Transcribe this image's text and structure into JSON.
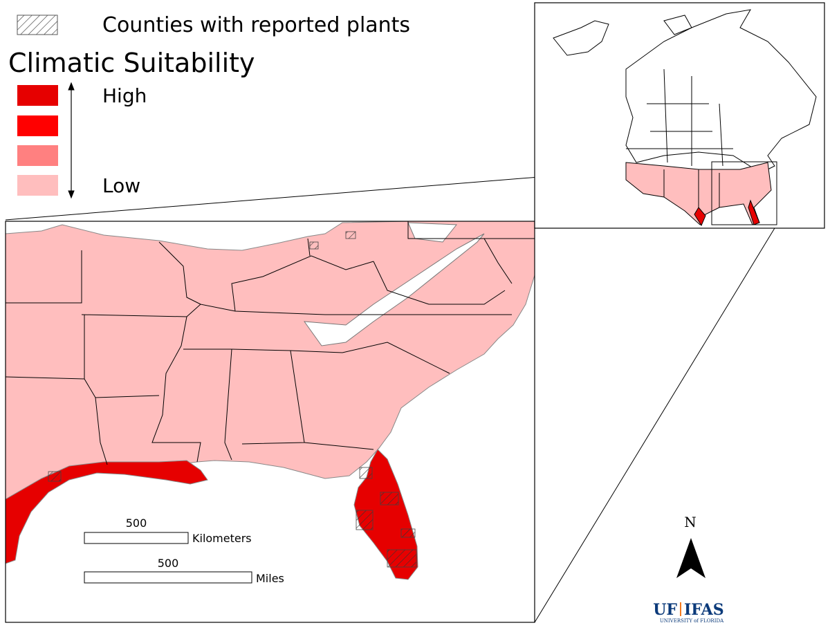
{
  "legend": {
    "hatch_label": "Counties with reported plants",
    "title": "Climatic Suitability",
    "high": "High",
    "low": "Low"
  },
  "scale_bar": {
    "km_value": 500,
    "km_unit": "Kilometers",
    "mi_value": 500,
    "mi_unit": "Miles"
  },
  "north": "N",
  "logo": {
    "uf": "UF",
    "ifas": "IFAS",
    "subtitle": "UNIVERSITY of FLORIDA"
  }
}
